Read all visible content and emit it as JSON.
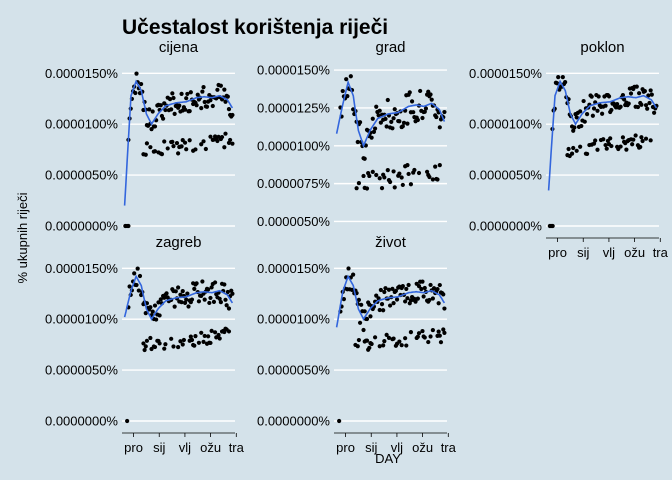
{
  "chart_data": {
    "type": "scatter",
    "title": "Učestalost korištenja riječi",
    "xlabel": "DAY",
    "ylabel": "% ukupnih riječi",
    "x_tick_labels": [
      "pro",
      "sij",
      "vlj",
      "ožu",
      "tra"
    ],
    "x_ticks_months": [
      0,
      1,
      2,
      3,
      4
    ],
    "smooth_color": "#3366dd",
    "point_color": "#000000",
    "grid_color": "#ffffff",
    "background": "#d4e2ea",
    "facets": [
      {
        "name": "cijena",
        "ylim": [
          0,
          1.65e-05
        ],
        "y_ticks": [
          0,
          5e-06,
          1e-05,
          1.5e-05
        ],
        "y_tick_labels": [
          "0.0000000%",
          "0.0000050%",
          "0.0000100%",
          "0.0000150%"
        ],
        "low_points": [
          [
            0.03,
            0
          ],
          [
            0.1,
            0
          ],
          [
            0.15,
            0
          ]
        ],
        "smooth_start": 2e-06
      },
      {
        "name": "grad",
        "ylim": [
          4.7e-06,
          1.58e-05
        ],
        "y_ticks": [
          5e-06,
          7.5e-06,
          1e-05,
          1.25e-05,
          1.5e-05
        ],
        "y_tick_labels": [
          "0.0000050%",
          "0.0000075%",
          "0.0000100%",
          "0.0000125%",
          "0.0000150%"
        ],
        "low_points": [],
        "smooth_start": 1.08e-05
      },
      {
        "name": "poklon",
        "ylim": [
          0,
          1.65e-05
        ],
        "y_ticks": [
          0,
          5e-06,
          1e-05,
          1.5e-05
        ],
        "y_tick_labels": [
          "0.0000000%",
          "0.0000050%",
          "0.0000100%",
          "0.0000150%"
        ],
        "low_points": [
          [
            0.05,
            0
          ],
          [
            0.1,
            0
          ],
          [
            0.16,
            0
          ]
        ],
        "smooth_start": 3.5e-06
      },
      {
        "name": "zagreb",
        "ylim": [
          0,
          1.65e-05
        ],
        "y_ticks": [
          0,
          5e-06,
          1e-05,
          1.5e-05
        ],
        "y_tick_labels": [
          "0.0000000%",
          "0.0000050%",
          "0.0000100%",
          "0.0000150%"
        ],
        "low_points": [
          [
            0.1,
            0
          ]
        ],
        "smooth_start": 1.02e-05
      },
      {
        "name": "život",
        "ylim": [
          0,
          1.65e-05
        ],
        "y_ticks": [
          0,
          5e-06,
          1e-05,
          1.5e-05
        ],
        "y_tick_labels": [
          "0.0000000%",
          "0.0000050%",
          "0.0000100%",
          "0.0000150%"
        ],
        "low_points": [
          [
            0.1,
            0
          ]
        ],
        "smooth_start": 9.2e-06
      }
    ],
    "day_range": [
      -0.1,
      4.3
    ]
  }
}
